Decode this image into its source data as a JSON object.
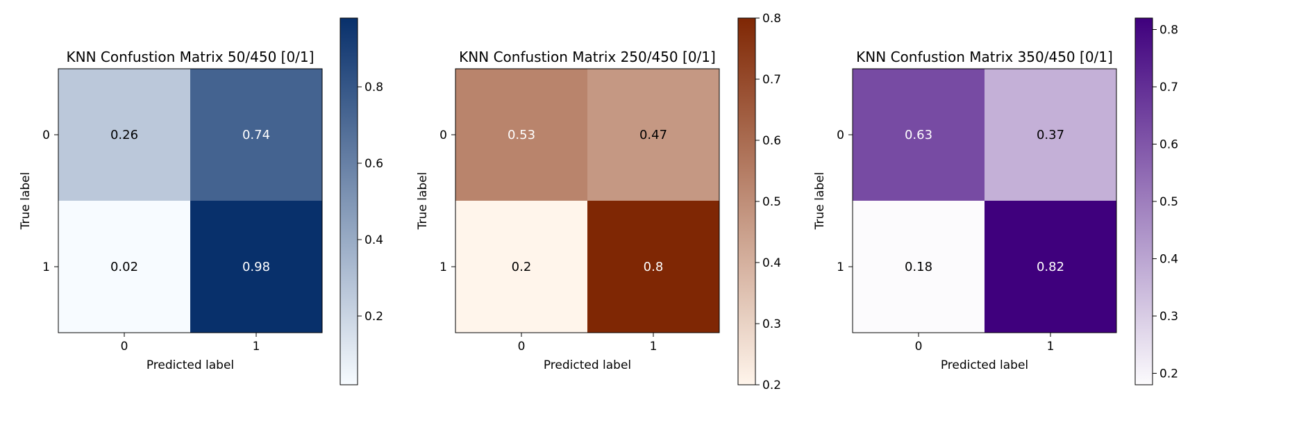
{
  "chart_data": [
    {
      "type": "heatmap",
      "title": "KNN Confustion Matrix 50/450 [0/1]",
      "xlabel": "Predicted label",
      "ylabel": "True label",
      "x_ticks": [
        "0",
        "1"
      ],
      "y_ticks": [
        "0",
        "1"
      ],
      "values": [
        [
          0.26,
          0.74
        ],
        [
          0.02,
          0.98
        ]
      ],
      "cell_labels": [
        [
          "0.26",
          "0.74"
        ],
        [
          "0.02",
          "0.98"
        ]
      ],
      "colormap": "Blues",
      "colors": {
        "low": "#f7fbff",
        "high": "#08306b"
      },
      "colorbar": {
        "min": 0.02,
        "max": 0.98,
        "ticks": [
          "0.2",
          "0.4",
          "0.6",
          "0.8"
        ]
      }
    },
    {
      "type": "heatmap",
      "title": "KNN Confustion Matrix 250/450 [0/1]",
      "xlabel": "Predicted label",
      "ylabel": "True label",
      "x_ticks": [
        "0",
        "1"
      ],
      "y_ticks": [
        "0",
        "1"
      ],
      "values": [
        [
          0.53,
          0.47
        ],
        [
          0.2,
          0.8
        ]
      ],
      "cell_labels": [
        [
          "0.53",
          "0.47"
        ],
        [
          "0.2",
          "0.8"
        ]
      ],
      "colormap": "Oranges",
      "colors": {
        "low": "#fff5eb",
        "high": "#7f2704"
      },
      "colorbar": {
        "min": 0.2,
        "max": 0.8,
        "ticks": [
          "0.2",
          "0.3",
          "0.4",
          "0.5",
          "0.6",
          "0.7",
          "0.8"
        ]
      }
    },
    {
      "type": "heatmap",
      "title": "KNN Confustion Matrix 350/450 [0/1]",
      "xlabel": "Predicted label",
      "ylabel": "True label",
      "x_ticks": [
        "0",
        "1"
      ],
      "y_ticks": [
        "0",
        "1"
      ],
      "values": [
        [
          0.63,
          0.37
        ],
        [
          0.18,
          0.82
        ]
      ],
      "cell_labels": [
        [
          "0.63",
          "0.37"
        ],
        [
          "0.18",
          "0.82"
        ]
      ],
      "colormap": "Purples",
      "colors": {
        "low": "#fcfbfd",
        "high": "#3f007d"
      },
      "colorbar": {
        "min": 0.18,
        "max": 0.82,
        "ticks": [
          "0.2",
          "0.3",
          "0.4",
          "0.5",
          "0.6",
          "0.7",
          "0.8"
        ]
      }
    }
  ]
}
